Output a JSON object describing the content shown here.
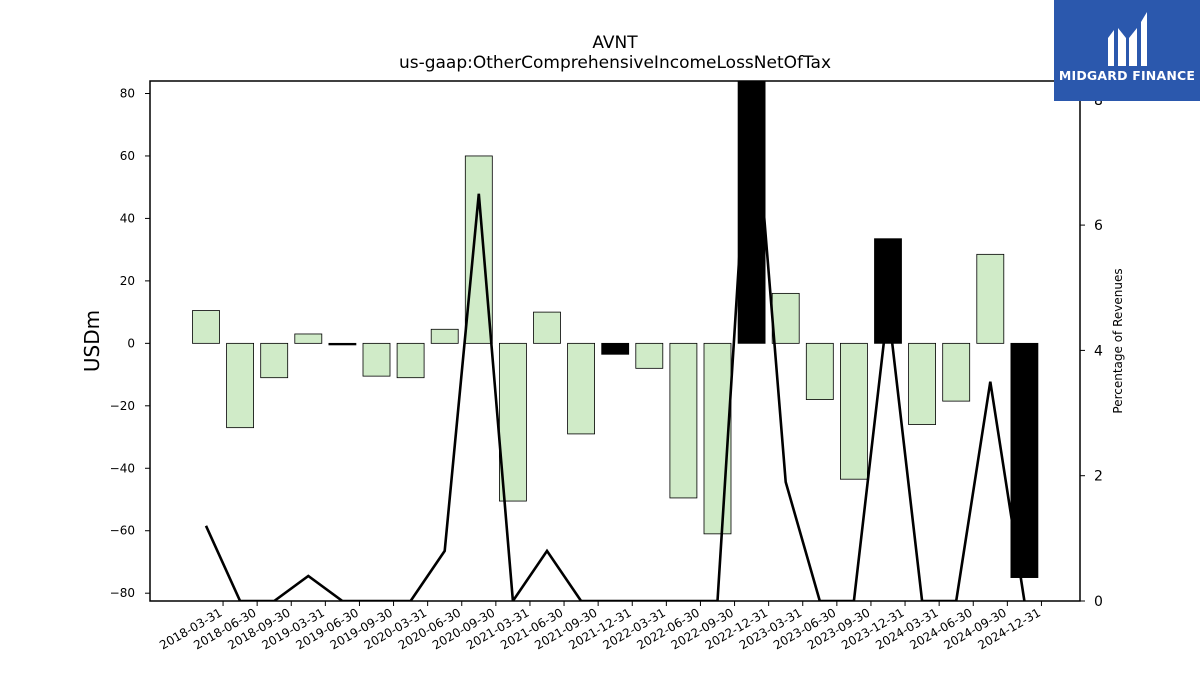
{
  "chart_data": {
    "type": "bar",
    "title": "AVNT",
    "subtitle": "us-gaap:OtherComprehensiveIncomeLossNetOfTax",
    "ylabel": "USDm",
    "y2label": "Percentage of Revenues",
    "ylim": [
      -82.5,
      84
    ],
    "y2lim": [
      0,
      8.3
    ],
    "yticks": [
      -80,
      -60,
      -40,
      -20,
      0,
      20,
      40,
      60,
      80
    ],
    "y2ticks": [
      0,
      2,
      4,
      6,
      8
    ],
    "categories": [
      "2018-03-31",
      "2018-06-30",
      "2018-09-30",
      "2019-03-31",
      "2019-06-30",
      "2019-09-30",
      "2020-03-31",
      "2020-06-30",
      "2020-09-30",
      "2021-03-31",
      "2021-06-30",
      "2021-09-30",
      "2021-12-31",
      "2022-03-31",
      "2022-06-30",
      "2022-09-30",
      "2022-12-31",
      "2023-03-31",
      "2023-06-30",
      "2023-09-30",
      "2023-12-31",
      "2024-03-31",
      "2024-06-30",
      "2024-09-30",
      "2024-12-31"
    ],
    "series": [
      {
        "values": [
          10.5,
          -27,
          -11,
          3,
          -0.5,
          -10.5,
          -11,
          4.5,
          60,
          -50.5,
          10,
          -29,
          -3.5,
          -8,
          -49.5,
          -61,
          90,
          16,
          -18,
          -43.5,
          33.5,
          -26,
          -18.5,
          28.5,
          -75
        ],
        "colors": [
          "#d0ebc8",
          "#d0ebc8",
          "#d0ebc8",
          "#d0ebc8",
          "#000000",
          "#d0ebc8",
          "#d0ebc8",
          "#d0ebc8",
          "#d0ebc8",
          "#d0ebc8",
          "#d0ebc8",
          "#d0ebc8",
          "#000000",
          "#d0ebc8",
          "#d0ebc8",
          "#d0ebc8",
          "#000000",
          "#d0ebc8",
          "#d0ebc8",
          "#d0ebc8",
          "#000000",
          "#d0ebc8",
          "#d0ebc8",
          "#d0ebc8",
          "#000000"
        ]
      },
      {
        "axis": "right",
        "type": "line",
        "values": [
          1.2,
          0,
          0,
          0.4,
          0,
          0,
          0,
          0.8,
          6.5,
          0,
          0.8,
          0,
          0,
          0,
          0,
          0,
          8.6,
          1.9,
          0,
          0,
          4.7,
          0,
          0,
          3.5,
          0
        ],
        "color": "#000000"
      }
    ],
    "grid": false,
    "legend": "none"
  },
  "logo": {
    "text": "MIDGARD FINANCE",
    "color": "#2b58ad"
  }
}
